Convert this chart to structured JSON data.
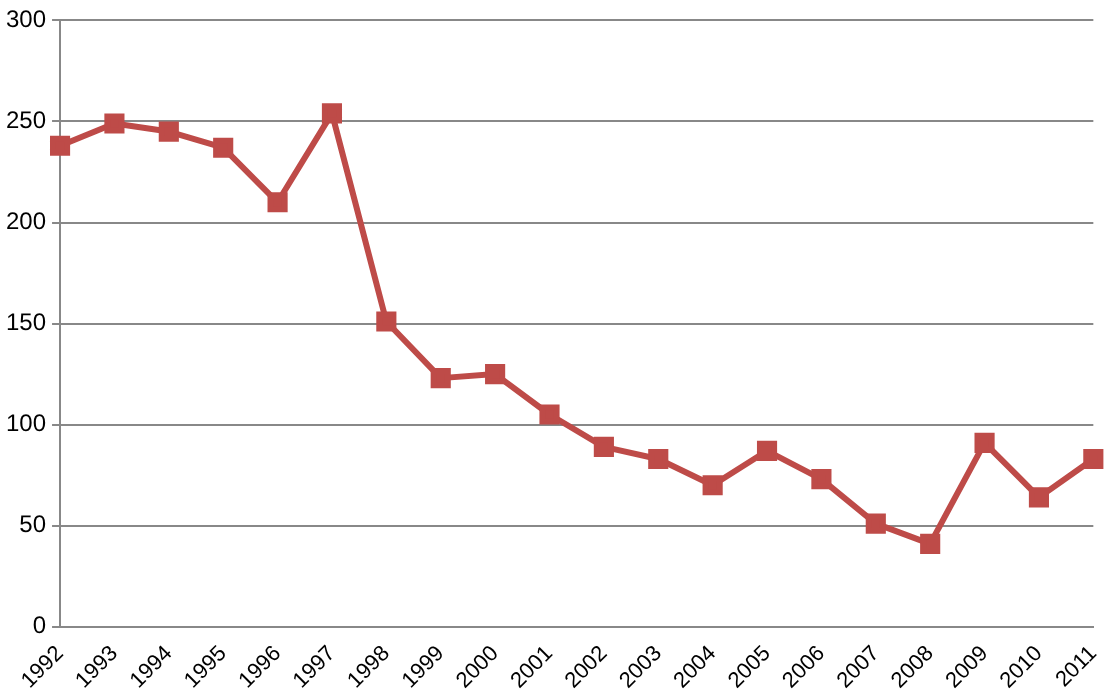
{
  "chart_data": {
    "type": "line",
    "categories": [
      "1992",
      "1993",
      "1994",
      "1995",
      "1996",
      "1997",
      "1998",
      "1999",
      "2000",
      "2001",
      "2002",
      "2003",
      "2004",
      "2005",
      "2006",
      "2007",
      "2008",
      "2009",
      "2010",
      "2011"
    ],
    "series": [
      {
        "color": "#be4b48",
        "values": [
          238,
          249,
          245,
          237,
          210,
          254,
          151,
          123,
          125,
          105,
          89,
          83,
          70,
          87,
          73,
          51,
          41,
          91,
          64,
          83
        ]
      }
    ],
    "ylim": [
      0,
      300
    ],
    "yticks": [
      0,
      50,
      100,
      150,
      200,
      250,
      300
    ],
    "grid": "y",
    "legend": false,
    "marker": "square",
    "line_style": "solid"
  }
}
